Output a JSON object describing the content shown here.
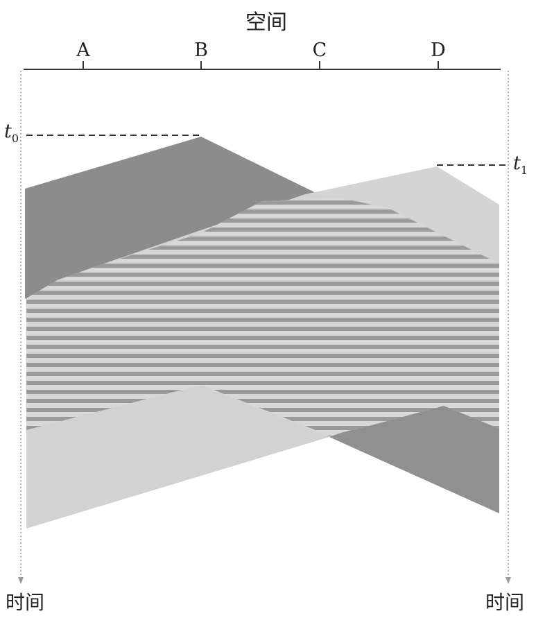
{
  "diagram": {
    "title": "空间",
    "stations": [
      "A",
      "B",
      "C",
      "D"
    ],
    "time_axis_label_left": "时间",
    "time_axis_label_right": "时间",
    "t0_label": "t",
    "t0_subscript": "0",
    "t1_label": "t",
    "t1_subscript": "1",
    "colors": {
      "dark_signal": "#8c8c8c",
      "light_signal": "#d4d4d4",
      "stripe_dark": "#9a9a9a",
      "stripe_light": "#d8d8d8",
      "line": "#333333",
      "dotted": "#aaaaaa"
    }
  }
}
